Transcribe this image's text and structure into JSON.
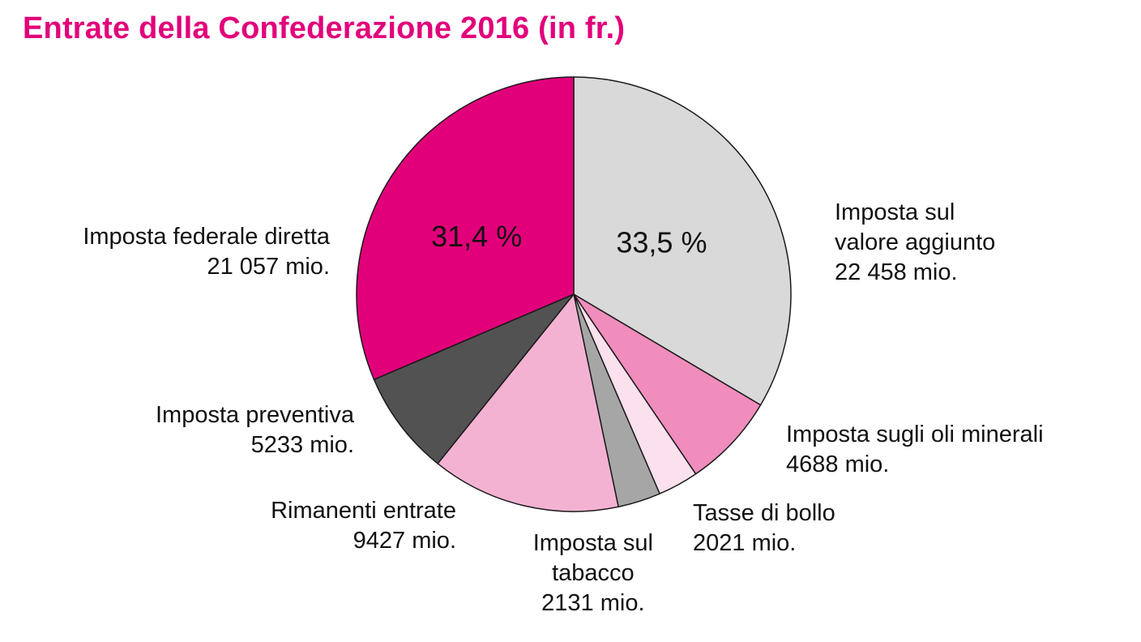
{
  "chart_data": {
    "type": "pie",
    "title": "Entrate della Confederazione 2016 (in fr.)",
    "start": "12 o'clock",
    "direction": "clockwise",
    "slices": [
      {
        "key": "iva",
        "lines": [
          "Imposta sul",
          "valore aggiunto"
        ],
        "value": 22458,
        "value_label": "22 458 mio.",
        "percent_label": "33,5 %",
        "color": "#d9d9d9"
      },
      {
        "key": "oli",
        "lines": [
          "Imposta sugli oli minerali"
        ],
        "value": 4688,
        "value_label": "4688 mio.",
        "color": "#f08dbc"
      },
      {
        "key": "bollo",
        "lines": [
          "Tasse di bollo"
        ],
        "value": 2021,
        "value_label": "2021 mio.",
        "color": "#fbe1ee"
      },
      {
        "key": "tabacco",
        "lines": [
          "Imposta sul",
          "tabacco"
        ],
        "value": 2131,
        "value_label": "2131 mio.",
        "color": "#a6a6a6"
      },
      {
        "key": "rimanenti",
        "lines": [
          "Rimanenti entrate"
        ],
        "value": 9427,
        "value_label": "9427 mio.",
        "color": "#f4b2d3"
      },
      {
        "key": "preventiva",
        "lines": [
          "Imposta preventiva"
        ],
        "value": 5233,
        "value_label": "5233 mio.",
        "color": "#525252"
      },
      {
        "key": "ifd",
        "lines": [
          "Imposta federale diretta"
        ],
        "value": 21057,
        "value_label": "21 057 mio.",
        "percent_label": "31,4 %",
        "color": "#e2007a"
      }
    ]
  }
}
